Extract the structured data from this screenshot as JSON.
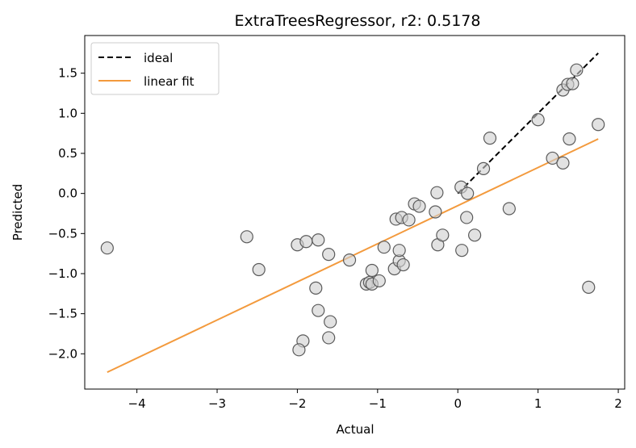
{
  "chart_data": {
    "type": "scatter",
    "title": "ExtraTreesRegressor, r2: 0.5178",
    "xlabel": "Actual",
    "ylabel": "Predicted",
    "xlim": [
      -4.65,
      2.08
    ],
    "ylim": [
      -2.44,
      1.97
    ],
    "xticks": [
      -4,
      -3,
      -2,
      -1,
      0,
      1,
      2
    ],
    "xtick_labels": [
      "−4",
      "−3",
      "−2",
      "−1",
      "0",
      "1",
      "2"
    ],
    "yticks": [
      -2.0,
      -1.5,
      -1.0,
      -0.5,
      0.0,
      0.5,
      1.0,
      1.5
    ],
    "ytick_labels": [
      "−2.0",
      "−1.5",
      "−1.0",
      "−0.5",
      "0.0",
      "0.5",
      "1.0",
      "1.5"
    ],
    "grid": false,
    "legend_position": "top-left",
    "legend": [
      {
        "label": "ideal",
        "style": "dashed",
        "color": "#000000"
      },
      {
        "label": "linear fit",
        "style": "solid",
        "color": "#f39a3d"
      }
    ],
    "series": [
      {
        "name": "ideal",
        "kind": "line",
        "color": "#000000",
        "dash": true,
        "x": [
          0.0,
          1.75
        ],
        "y": [
          0.0,
          1.75
        ]
      },
      {
        "name": "linear fit",
        "kind": "line",
        "color": "#f39a3d",
        "dash": false,
        "x": [
          -4.37,
          1.75
        ],
        "y": [
          -2.23,
          0.68
        ]
      },
      {
        "kind": "scatter",
        "marker_fill": "#cfcfcf",
        "marker_edge": "#5a5a5a",
        "points": [
          [
            -4.37,
            -0.68
          ],
          [
            -2.63,
            -0.54
          ],
          [
            -2.48,
            -0.95
          ],
          [
            -2.0,
            -0.64
          ],
          [
            -1.89,
            -0.6
          ],
          [
            -1.74,
            -0.58
          ],
          [
            -1.61,
            -0.76
          ],
          [
            -1.77,
            -1.18
          ],
          [
            -1.74,
            -1.46
          ],
          [
            -1.59,
            -1.6
          ],
          [
            -1.61,
            -1.8
          ],
          [
            -1.93,
            -1.84
          ],
          [
            -1.98,
            -1.95
          ],
          [
            -1.35,
            -0.83
          ],
          [
            -1.14,
            -1.13
          ],
          [
            -1.1,
            -1.11
          ],
          [
            -1.07,
            -1.13
          ],
          [
            -0.98,
            -1.09
          ],
          [
            -1.07,
            -0.96
          ],
          [
            -0.92,
            -0.67
          ],
          [
            -0.79,
            -0.94
          ],
          [
            -0.73,
            -0.84
          ],
          [
            -0.68,
            -0.89
          ],
          [
            -0.73,
            -0.71
          ],
          [
            -0.77,
            -0.32
          ],
          [
            -0.7,
            -0.3
          ],
          [
            -0.61,
            -0.33
          ],
          [
            -0.54,
            -0.13
          ],
          [
            -0.48,
            -0.16
          ],
          [
            -0.28,
            -0.23
          ],
          [
            -0.26,
            0.01
          ],
          [
            -0.25,
            -0.64
          ],
          [
            -0.19,
            -0.52
          ],
          [
            0.04,
            0.08
          ],
          [
            0.05,
            -0.71
          ],
          [
            0.12,
            0.0
          ],
          [
            0.11,
            -0.3
          ],
          [
            0.21,
            -0.52
          ],
          [
            0.32,
            0.31
          ],
          [
            0.4,
            0.69
          ],
          [
            0.64,
            -0.19
          ],
          [
            1.0,
            0.92
          ],
          [
            1.18,
            0.44
          ],
          [
            1.31,
            0.38
          ],
          [
            1.31,
            1.29
          ],
          [
            1.37,
            1.36
          ],
          [
            1.43,
            1.37
          ],
          [
            1.48,
            1.54
          ],
          [
            1.39,
            0.68
          ],
          [
            1.63,
            -1.17
          ],
          [
            1.75,
            0.86
          ]
        ]
      }
    ]
  }
}
